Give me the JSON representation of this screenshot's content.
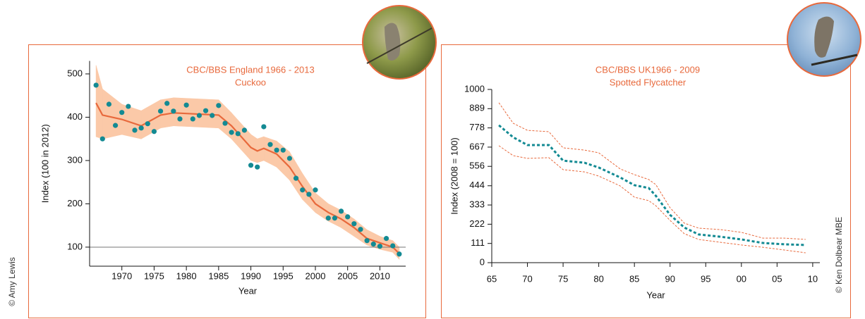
{
  "chart_data": [
    {
      "type": "line",
      "title": "CBC/BBS England 1966 - 2013",
      "subtitle": "Cuckoo",
      "xlabel": "Year",
      "ylabel": "Index (100 in 2012)",
      "credit": "© Amy Lewis",
      "x": [
        1966,
        1967,
        1970,
        1973,
        1976,
        1978,
        1985,
        1987,
        1990,
        1991,
        1992,
        1994,
        1996,
        1998,
        2000,
        2002,
        2004,
        2006,
        2008,
        2010,
        2012,
        2013
      ],
      "series": [
        {
          "color": "#e8693c",
          "style": "solid",
          "values": [
            433,
            405,
            395,
            380,
            405,
            410,
            405,
            380,
            330,
            322,
            328,
            315,
            285,
            240,
            200,
            180,
            165,
            145,
            120,
            110,
            100,
            85
          ]
        }
      ],
      "band": {
        "color": "#fbc9a8",
        "style": "fill",
        "upper": [
          520,
          465,
          430,
          415,
          440,
          445,
          440,
          410,
          360,
          350,
          355,
          345,
          320,
          270,
          225,
          200,
          185,
          165,
          140,
          125,
          115,
          100
        ],
        "lower": [
          355,
          350,
          360,
          350,
          375,
          380,
          375,
          350,
          300,
          295,
          300,
          285,
          255,
          210,
          180,
          160,
          145,
          125,
          105,
          95,
          88,
          72
        ]
      },
      "points": {
        "color": "#138a93",
        "x": [
          1966,
          1967,
          1968,
          1969,
          1970,
          1971,
          1972,
          1973,
          1974,
          1975,
          1976,
          1977,
          1978,
          1979,
          1980,
          1981,
          1982,
          1983,
          1984,
          1985,
          1986,
          1987,
          1988,
          1989,
          1990,
          1991,
          1992,
          1993,
          1994,
          1995,
          1996,
          1997,
          1998,
          1999,
          2000,
          2002,
          2003,
          2004,
          2005,
          2006,
          2007,
          2008,
          2009,
          2010,
          2011,
          2012,
          2013
        ],
        "values": [
          474,
          350,
          430,
          381,
          411,
          425,
          370,
          375,
          385,
          367,
          414,
          432,
          414,
          396,
          428,
          396,
          404,
          415,
          404,
          427,
          386,
          365,
          362,
          370,
          289,
          285,
          378,
          337,
          324,
          324,
          305,
          259,
          232,
          222,
          232,
          167,
          167,
          183,
          170,
          154,
          141,
          115,
          107,
          102,
          120,
          103,
          84
        ]
      },
      "hline": 100,
      "xlim": [
        1965,
        2014
      ],
      "ylim": [
        56,
        530
      ],
      "xticks": [
        1970,
        1975,
        1980,
        1985,
        1990,
        1995,
        2000,
        2005,
        2010
      ],
      "yticks": [
        100,
        200,
        300,
        400,
        500
      ]
    },
    {
      "type": "line",
      "title": "CBC/BBS UK1966 - 2009",
      "subtitle": "Spotted Flycatcher",
      "xlabel": "Year",
      "ylabel": "Index (2008 = 100)",
      "credit": "© Ken Dolbear MBE",
      "x": [
        1966,
        1968,
        1970,
        1973,
        1975,
        1978,
        1980,
        1983,
        1985,
        1987,
        1988,
        1990,
        1992,
        1994,
        1997,
        2000,
        2003,
        2006,
        2009
      ],
      "series": [
        {
          "color": "#138a93",
          "style": "dashed",
          "values": [
            793,
            724,
            679,
            679,
            589,
            577,
            549,
            492,
            447,
            431,
            386,
            276,
            203,
            163,
            150,
            134,
            114,
            106,
            102
          ]
        }
      ],
      "band": {
        "color": "#e8693c",
        "style": "dashed",
        "upper": [
          923,
          805,
          764,
          756,
          663,
          650,
          634,
          541,
          508,
          480,
          451,
          317,
          228,
          199,
          191,
          175,
          142,
          142,
          134
        ],
        "lower": [
          675,
          618,
          602,
          606,
          537,
          524,
          500,
          443,
          378,
          358,
          329,
          244,
          167,
          134,
          118,
          102,
          89,
          73,
          57
        ]
      },
      "xlim": [
        1965,
        2011
      ],
      "ylim": [
        0,
        1000
      ],
      "xticks": [
        {
          "value": 1965,
          "label": "65"
        },
        {
          "value": 1970,
          "label": "70"
        },
        {
          "value": 1975,
          "label": "75"
        },
        {
          "value": 1980,
          "label": "80"
        },
        {
          "value": 1985,
          "label": "85"
        },
        {
          "value": 1990,
          "label": "90"
        },
        {
          "value": 1995,
          "label": "95"
        },
        {
          "value": 2000,
          "label": "00"
        },
        {
          "value": 2005,
          "label": "05"
        },
        {
          "value": 2010,
          "label": "10"
        }
      ],
      "yticks": [
        0,
        111,
        222,
        333,
        444,
        556,
        667,
        778,
        889,
        1000
      ]
    }
  ]
}
